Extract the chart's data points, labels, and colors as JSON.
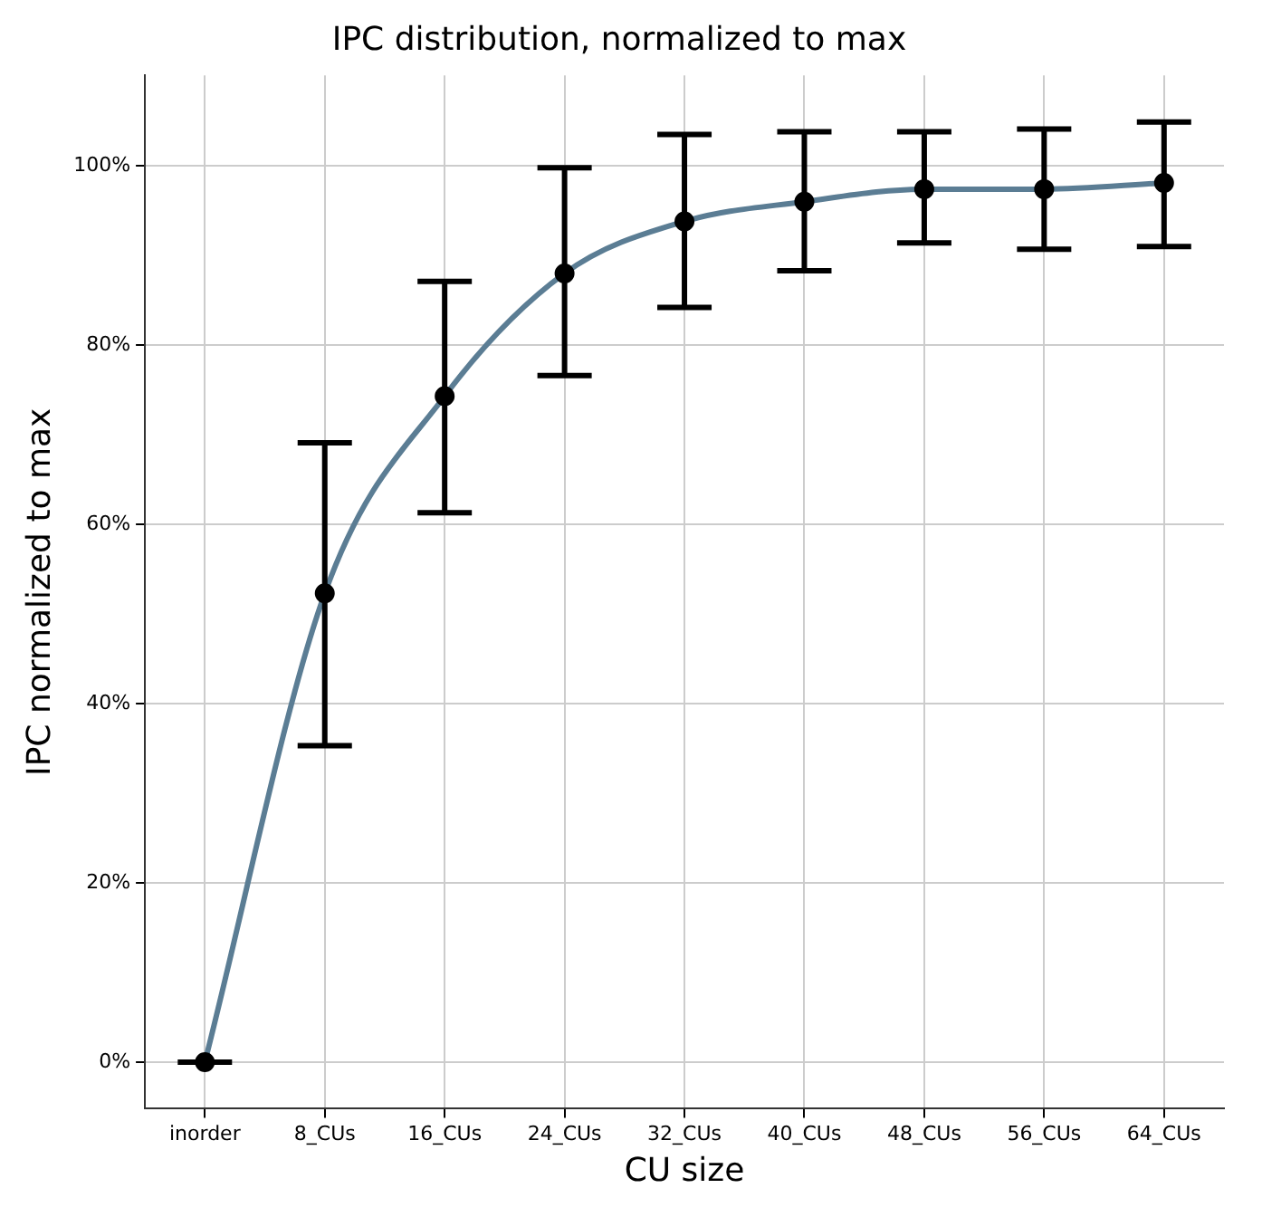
{
  "chart_data": {
    "type": "line",
    "title": "IPC distribution, normalized to max",
    "xlabel": "CU size",
    "ylabel": "IPC normalized to max",
    "categories": [
      "inorder",
      "8_CUs",
      "16_CUs",
      "24_CUs",
      "32_CUs",
      "40_CUs",
      "48_CUs",
      "56_CUs",
      "64_CUs"
    ],
    "series": [
      {
        "color": "#5b7d94",
        "values": [
          0,
          52.3,
          74.3,
          88.0,
          93.8,
          96.0,
          97.4,
          97.4,
          98.1
        ],
        "errors": [
          [
            0,
            0
          ],
          [
            35.3,
            69.1
          ],
          [
            61.3,
            87.1
          ],
          [
            76.6,
            99.8
          ],
          [
            84.2,
            103.5
          ],
          [
            88.3,
            103.8
          ],
          [
            91.4,
            103.8
          ],
          [
            90.7,
            104.1
          ],
          [
            91.0,
            104.9
          ]
        ]
      }
    ],
    "ylim": [
      -5.2,
      110.1
    ],
    "yticks": [
      {
        "value": 0,
        "label": "0%"
      },
      {
        "value": 20,
        "label": "20%"
      },
      {
        "value": 40,
        "label": "40%"
      },
      {
        "value": 60,
        "label": "60%"
      },
      {
        "value": 80,
        "label": "80%"
      },
      {
        "value": 100,
        "label": "100%"
      }
    ],
    "grid": true,
    "marker": "circle",
    "line_style": "solid",
    "legend": false
  }
}
